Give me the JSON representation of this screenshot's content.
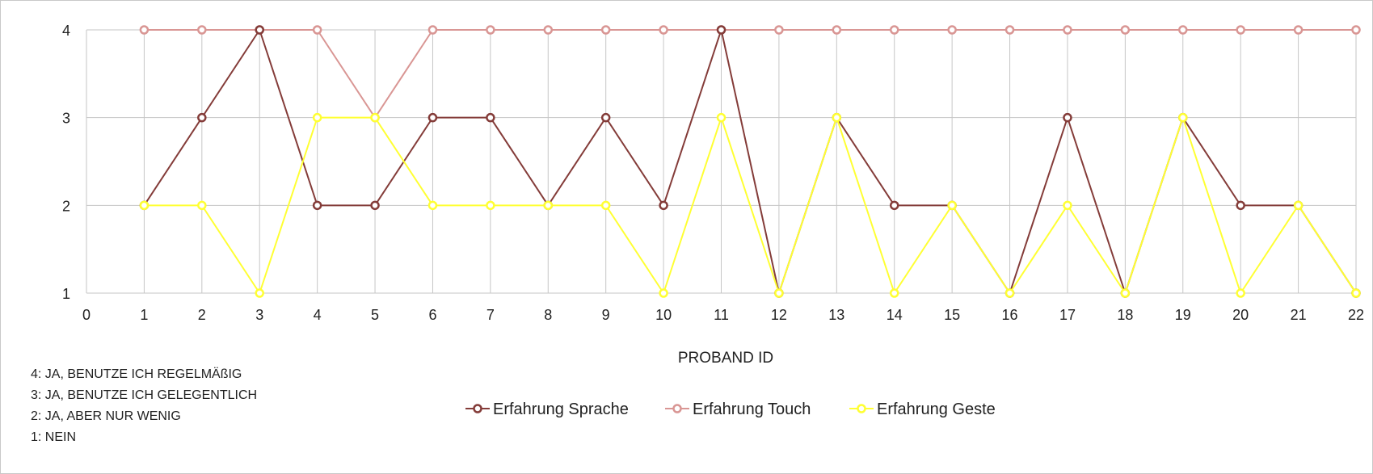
{
  "chart_data": {
    "type": "line",
    "title": "",
    "xlabel": "PROBAND ID",
    "ylabel": "",
    "xlim": [
      0,
      22
    ],
    "ylim": [
      1,
      4
    ],
    "x_ticks": [
      0,
      1,
      2,
      3,
      4,
      5,
      6,
      7,
      8,
      9,
      10,
      11,
      12,
      13,
      14,
      15,
      16,
      17,
      18,
      19,
      20,
      21,
      22
    ],
    "y_ticks": [
      1,
      2,
      3,
      4
    ],
    "grid": true,
    "legend_position": "bottom",
    "x": [
      1,
      2,
      3,
      4,
      5,
      6,
      7,
      8,
      9,
      10,
      11,
      12,
      13,
      14,
      15,
      16,
      17,
      18,
      19,
      20,
      21,
      22
    ],
    "series": [
      {
        "name": "Erfahrung Sprache",
        "color": "#843c39",
        "values": [
          2,
          3,
          4,
          2,
          2,
          3,
          3,
          2,
          3,
          2,
          4,
          1,
          3,
          2,
          2,
          1,
          3,
          1,
          3,
          2,
          2,
          1
        ]
      },
      {
        "name": "Erfahrung Touch",
        "color": "#d99694",
        "values": [
          4,
          4,
          4,
          4,
          3,
          4,
          4,
          4,
          4,
          4,
          4,
          4,
          4,
          4,
          4,
          4,
          4,
          4,
          4,
          4,
          4,
          4
        ]
      },
      {
        "name": "Erfahrung Geste",
        "color": "#ffff33",
        "values": [
          2,
          2,
          1,
          3,
          3,
          2,
          2,
          2,
          2,
          1,
          3,
          1,
          3,
          1,
          2,
          1,
          2,
          1,
          3,
          1,
          2,
          1
        ]
      }
    ],
    "notes": [
      "4: JA, BENUTZE ICH REGELMÄßIG",
      "3: JA, BENUTZE ICH GELEGENTLICH",
      "2: JA, ABER NUR WENIG",
      "1: NEIN"
    ]
  }
}
